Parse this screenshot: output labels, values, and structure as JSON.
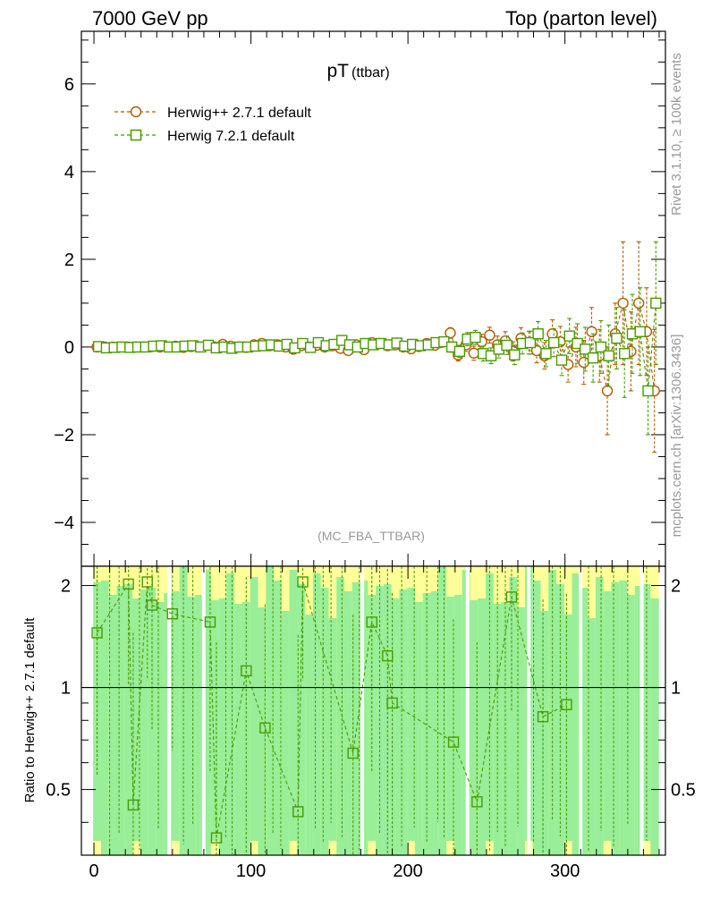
{
  "header": {
    "left": "7000 GeV pp",
    "right": "Top (parton level)"
  },
  "side_labels": {
    "rivet": "Rivet 3.1.10, ≥ 100k events",
    "mcplots": "mcplots.cern.ch [arXiv:1306.3436]"
  },
  "analysis_tag": "(MC_FBA_TTBAR)",
  "colors": {
    "herwig_pp": "#b35a00",
    "herwig7": "#4a9a00",
    "band_green": "#99ee99",
    "band_yellow": "#ffff99"
  },
  "chart_data": [
    {
      "type": "scatter",
      "title": "pT",
      "title_sub": "(ttbar)",
      "xlim": [
        -8,
        364
      ],
      "ylim": [
        -5,
        7.2
      ],
      "yticks": [
        -4,
        -2,
        0,
        2,
        4,
        6
      ],
      "ytick_labels": [
        "−4",
        "−2",
        "0",
        "2",
        "4",
        "6"
      ],
      "series": [
        {
          "name": "Herwig++ 2.7.1 default",
          "marker": "circle",
          "x": [
            2,
            7,
            12,
            17,
            22,
            27,
            32,
            37,
            42,
            47,
            52,
            57,
            62,
            67,
            72,
            77,
            82,
            87,
            92,
            97,
            102,
            107,
            112,
            117,
            122,
            127,
            132,
            137,
            142,
            147,
            152,
            157,
            162,
            167,
            172,
            177,
            182,
            187,
            192,
            197,
            202,
            207,
            212,
            217,
            222,
            227,
            232,
            237,
            242,
            247,
            252,
            257,
            262,
            267,
            272,
            277,
            282,
            287,
            292,
            297,
            302,
            307,
            312,
            317,
            322,
            327,
            332,
            337,
            342,
            347,
            352,
            357
          ],
          "y": [
            0.0,
            0.0,
            0.0,
            0.0,
            0.0,
            0.0,
            0.0,
            0.01,
            0.0,
            0.0,
            0.02,
            -0.01,
            0.01,
            0.0,
            0.04,
            0.0,
            0.06,
            0.02,
            0.0,
            -0.01,
            0.05,
            0.08,
            0.03,
            0.05,
            0.0,
            -0.05,
            0.03,
            0.0,
            0.04,
            0.0,
            0.03,
            -0.03,
            -0.08,
            0.05,
            -0.06,
            0.1,
            0.08,
            0.03,
            0.05,
            0.0,
            -0.04,
            0.01,
            0.08,
            0.04,
            0.11,
            0.32,
            -0.18,
            0.05,
            -0.14,
            0.12,
            0.27,
            0.05,
            0.14,
            -0.1,
            0.2,
            0.1,
            -0.08,
            -0.2,
            0.3,
            0.12,
            -0.4,
            0.0,
            -0.35,
            0.35,
            -0.2,
            -1.0,
            0.3,
            1.0,
            -0.1,
            1.0,
            0.35,
            -1.0
          ],
          "err": [
            0.02,
            0.02,
            0.02,
            0.02,
            0.02,
            0.02,
            0.02,
            0.02,
            0.02,
            0.02,
            0.02,
            0.02,
            0.02,
            0.03,
            0.03,
            0.03,
            0.03,
            0.03,
            0.03,
            0.03,
            0.03,
            0.04,
            0.04,
            0.04,
            0.04,
            0.04,
            0.04,
            0.05,
            0.05,
            0.05,
            0.05,
            0.05,
            0.06,
            0.06,
            0.06,
            0.06,
            0.07,
            0.07,
            0.07,
            0.08,
            0.08,
            0.08,
            0.09,
            0.09,
            0.1,
            0.12,
            0.14,
            0.15,
            0.16,
            0.17,
            0.18,
            0.2,
            0.21,
            0.22,
            0.24,
            0.26,
            0.28,
            0.3,
            0.32,
            0.35,
            0.4,
            0.45,
            0.5,
            0.55,
            0.6,
            1.0,
            0.7,
            1.4,
            0.9,
            1.4,
            1.0,
            1.4
          ]
        },
        {
          "name": "Herwig 7.2.1 default",
          "marker": "square",
          "x": [
            2,
            7,
            12,
            17,
            22,
            27,
            32,
            37,
            42,
            47,
            52,
            57,
            62,
            67,
            72,
            77,
            82,
            87,
            92,
            97,
            102,
            107,
            112,
            117,
            122,
            127,
            132,
            137,
            142,
            147,
            152,
            157,
            162,
            167,
            172,
            177,
            182,
            187,
            192,
            197,
            202,
            207,
            212,
            217,
            222,
            227,
            232,
            237,
            242,
            247,
            252,
            257,
            262,
            267,
            272,
            277,
            282,
            287,
            292,
            297,
            302,
            307,
            312,
            317,
            322,
            327,
            332,
            337,
            342,
            347,
            352,
            357
          ],
          "y": [
            0.01,
            -0.02,
            -0.01,
            0.0,
            -0.01,
            0.0,
            0.0,
            0.02,
            0.03,
            0.0,
            0.0,
            0.02,
            0.03,
            0.0,
            0.04,
            -0.02,
            0.0,
            -0.03,
            0.0,
            0.0,
            0.02,
            0.03,
            0.05,
            0.02,
            0.06,
            -0.02,
            0.08,
            -0.01,
            0.1,
            0.03,
            0.06,
            0.15,
            0.05,
            0.0,
            0.08,
            0.05,
            0.08,
            0.05,
            0.09,
            0.02,
            0.06,
            0.03,
            0.05,
            0.1,
            0.12,
            0.0,
            -0.1,
            0.18,
            0.22,
            -0.15,
            -0.2,
            -0.05,
            0.04,
            -0.18,
            0.08,
            0.1,
            0.3,
            -0.15,
            0.1,
            -0.3,
            0.25,
            0.08,
            -0.05,
            -0.25,
            0.0,
            -0.2,
            0.2,
            -0.15,
            0.3,
            0.35,
            -1.0,
            1.0
          ],
          "err": [
            0.02,
            0.02,
            0.02,
            0.02,
            0.02,
            0.02,
            0.02,
            0.02,
            0.02,
            0.02,
            0.02,
            0.02,
            0.02,
            0.03,
            0.03,
            0.03,
            0.03,
            0.03,
            0.03,
            0.03,
            0.03,
            0.04,
            0.04,
            0.04,
            0.04,
            0.04,
            0.04,
            0.05,
            0.05,
            0.05,
            0.05,
            0.05,
            0.06,
            0.06,
            0.06,
            0.06,
            0.07,
            0.07,
            0.07,
            0.08,
            0.08,
            0.08,
            0.09,
            0.09,
            0.1,
            0.12,
            0.14,
            0.15,
            0.16,
            0.17,
            0.18,
            0.2,
            0.21,
            0.22,
            0.24,
            0.26,
            0.28,
            0.3,
            0.32,
            0.35,
            0.4,
            0.45,
            0.5,
            0.55,
            0.6,
            0.7,
            0.7,
            1.0,
            0.9,
            1.0,
            1.0,
            1.4
          ]
        }
      ]
    },
    {
      "type": "scatter",
      "ylabel": "Ratio to Herwig++ 2.7.1 default",
      "xlim": [
        -8,
        364
      ],
      "ylim": [
        0.32,
        2.28
      ],
      "yticks": [
        0.5,
        1,
        2
      ],
      "ytick_labels": [
        "0.5",
        "1",
        "2"
      ],
      "xticks": [
        0,
        100,
        200,
        300
      ],
      "xtick_labels": [
        "0",
        "100",
        "200",
        "300"
      ],
      "reference_line": 1,
      "series": [
        {
          "name": "Herwig 7.2.1 default",
          "marker": "square",
          "x": [
            2,
            22,
            25,
            34,
            37,
            50,
            74,
            78,
            97,
            109,
            130,
            133,
            165,
            177,
            187,
            190,
            229,
            244,
            266,
            286,
            301
          ],
          "y": [
            1.45,
            2.02,
            0.45,
            2.05,
            1.75,
            1.65,
            1.56,
            0.36,
            1.12,
            0.76,
            0.43,
            2.05,
            0.64,
            1.56,
            1.24,
            0.9,
            0.69,
            0.46,
            1.85,
            0.82,
            0.89
          ],
          "err": [
            0.9,
            1.0,
            1.0,
            1.0,
            1.0,
            1.0,
            1.0,
            1.0,
            1.0,
            1.0,
            1.0,
            1.0,
            1.0,
            1.0,
            1.0,
            1.0,
            0.9,
            0.9,
            1.0,
            1.0,
            1.0
          ]
        }
      ]
    }
  ]
}
